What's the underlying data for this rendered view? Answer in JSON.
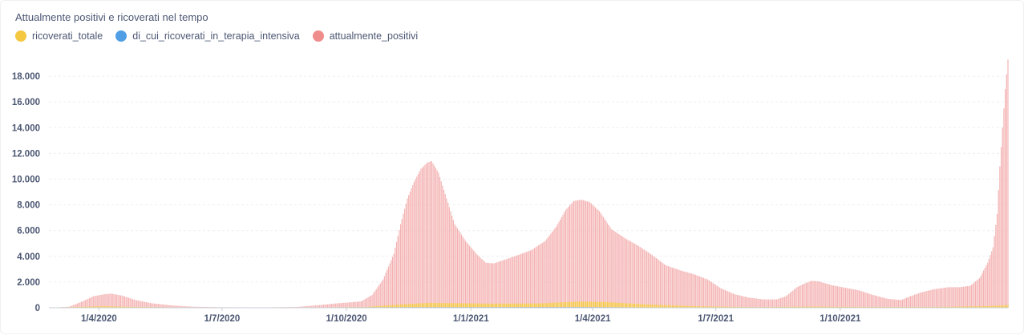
{
  "title": "Attualmente positivi e ricoverati nel tempo",
  "legend": [
    {
      "label": "ricoverati_totale",
      "color": "#f5c842"
    },
    {
      "label": "di_cui_ricoverati_in_terapia_intensiva",
      "color": "#509ee3"
    },
    {
      "label": "attualmente_positivi",
      "color": "#ef8c8c"
    }
  ],
  "chart_data": {
    "type": "bar",
    "x_axis_type": "date",
    "x_range": [
      "2020-02-24",
      "2022-01-03"
    ],
    "x_tick_labels": [
      {
        "date": "2020-04-01",
        "label": "1/4/2020"
      },
      {
        "date": "2020-07-01",
        "label": "1/7/2020"
      },
      {
        "date": "2020-10-01",
        "label": "1/10/2020"
      },
      {
        "date": "2021-01-01",
        "label": "1/1/2021"
      },
      {
        "date": "2021-04-01",
        "label": "1/4/2021"
      },
      {
        "date": "2021-07-01",
        "label": "1/7/2021"
      },
      {
        "date": "2021-10-01",
        "label": "1/10/2021"
      }
    ],
    "y_ticks": [
      {
        "value": 0,
        "label": "0"
      },
      {
        "value": 2000,
        "label": "2.000"
      },
      {
        "value": 4000,
        "label": "4.000"
      },
      {
        "value": 6000,
        "label": "6.000"
      },
      {
        "value": 8000,
        "label": "8.000"
      },
      {
        "value": 10000,
        "label": "10.000"
      },
      {
        "value": 12000,
        "label": "12.000"
      },
      {
        "value": 14000,
        "label": "14.000"
      },
      {
        "value": 16000,
        "label": "16.000"
      },
      {
        "value": 18000,
        "label": "18.000"
      }
    ],
    "ylim": [
      0,
      19500
    ],
    "grid": true,
    "legend_position": "top-left",
    "series": [
      {
        "name": "attualmente_positivi",
        "color": "#f4b1b1",
        "points": [
          [
            "2020-02-24",
            0
          ],
          [
            "2020-03-10",
            80
          ],
          [
            "2020-03-20",
            500
          ],
          [
            "2020-03-28",
            900
          ],
          [
            "2020-04-05",
            1050
          ],
          [
            "2020-04-10",
            1100
          ],
          [
            "2020-04-18",
            950
          ],
          [
            "2020-04-28",
            600
          ],
          [
            "2020-05-10",
            350
          ],
          [
            "2020-05-25",
            180
          ],
          [
            "2020-06-10",
            80
          ],
          [
            "2020-07-01",
            40
          ],
          [
            "2020-08-01",
            30
          ],
          [
            "2020-08-25",
            60
          ],
          [
            "2020-09-10",
            200
          ],
          [
            "2020-09-25",
            350
          ],
          [
            "2020-10-05",
            430
          ],
          [
            "2020-10-12",
            500
          ],
          [
            "2020-10-20",
            1000
          ],
          [
            "2020-10-28",
            2200
          ],
          [
            "2020-11-05",
            4200
          ],
          [
            "2020-11-10",
            6500
          ],
          [
            "2020-11-15",
            8500
          ],
          [
            "2020-11-20",
            9800
          ],
          [
            "2020-11-25",
            10800
          ],
          [
            "2020-11-30",
            11300
          ],
          [
            "2020-12-03",
            11400
          ],
          [
            "2020-12-08",
            10500
          ],
          [
            "2020-12-14",
            8500
          ],
          [
            "2020-12-20",
            6500
          ],
          [
            "2020-12-28",
            5200
          ],
          [
            "2021-01-05",
            4200
          ],
          [
            "2021-01-12",
            3500
          ],
          [
            "2021-01-18",
            3450
          ],
          [
            "2021-01-25",
            3700
          ],
          [
            "2021-02-05",
            4100
          ],
          [
            "2021-02-15",
            4500
          ],
          [
            "2021-02-25",
            5200
          ],
          [
            "2021-03-05",
            6300
          ],
          [
            "2021-03-12",
            7600
          ],
          [
            "2021-03-18",
            8300
          ],
          [
            "2021-03-24",
            8400
          ],
          [
            "2021-03-30",
            8200
          ],
          [
            "2021-04-06",
            7500
          ],
          [
            "2021-04-15",
            6100
          ],
          [
            "2021-04-25",
            5400
          ],
          [
            "2021-05-05",
            4800
          ],
          [
            "2021-05-15",
            4100
          ],
          [
            "2021-05-25",
            3300
          ],
          [
            "2021-06-05",
            2900
          ],
          [
            "2021-06-15",
            2600
          ],
          [
            "2021-06-25",
            2200
          ],
          [
            "2021-07-05",
            1500
          ],
          [
            "2021-07-15",
            1050
          ],
          [
            "2021-07-25",
            800
          ],
          [
            "2021-08-05",
            650
          ],
          [
            "2021-08-15",
            650
          ],
          [
            "2021-08-22",
            900
          ],
          [
            "2021-08-30",
            1600
          ],
          [
            "2021-09-05",
            1900
          ],
          [
            "2021-09-10",
            2100
          ],
          [
            "2021-09-15",
            2050
          ],
          [
            "2021-09-25",
            1750
          ],
          [
            "2021-10-05",
            1550
          ],
          [
            "2021-10-15",
            1350
          ],
          [
            "2021-10-25",
            1000
          ],
          [
            "2021-11-05",
            700
          ],
          [
            "2021-11-15",
            600
          ],
          [
            "2021-11-22",
            900
          ],
          [
            "2021-11-30",
            1200
          ],
          [
            "2021-12-10",
            1450
          ],
          [
            "2021-12-20",
            1600
          ],
          [
            "2021-12-28",
            1600
          ],
          [
            "2022-01-05",
            1700
          ],
          [
            "2022-01-12",
            2300
          ],
          [
            "2022-01-18",
            3500
          ],
          [
            "2022-01-22",
            4700
          ],
          [
            "2022-01-25",
            7300
          ],
          [
            "2022-01-27",
            11000
          ],
          [
            "2022-01-29",
            14000
          ],
          [
            "2022-01-31",
            17000
          ],
          [
            "2022-02-02",
            19300
          ]
        ]
      },
      {
        "name": "ricoverati_totale",
        "color": "#f5c842",
        "points": [
          [
            "2020-02-24",
            0
          ],
          [
            "2020-03-15",
            60
          ],
          [
            "2020-04-05",
            120
          ],
          [
            "2020-04-25",
            70
          ],
          [
            "2020-06-01",
            20
          ],
          [
            "2020-09-01",
            10
          ],
          [
            "2020-10-15",
            60
          ],
          [
            "2020-11-10",
            250
          ],
          [
            "2020-12-01",
            380
          ],
          [
            "2021-01-15",
            320
          ],
          [
            "2021-02-20",
            330
          ],
          [
            "2021-03-20",
            480
          ],
          [
            "2021-04-10",
            450
          ],
          [
            "2021-05-10",
            260
          ],
          [
            "2021-06-15",
            120
          ],
          [
            "2021-08-01",
            50
          ],
          [
            "2021-09-10",
            90
          ],
          [
            "2021-10-20",
            60
          ],
          [
            "2021-12-10",
            60
          ],
          [
            "2022-01-20",
            130
          ],
          [
            "2022-02-02",
            210
          ]
        ]
      },
      {
        "name": "di_cui_ricoverati_in_terapia_intensiva",
        "color": "#509ee3",
        "points": [
          [
            "2020-02-24",
            0
          ],
          [
            "2020-04-05",
            25
          ],
          [
            "2020-06-01",
            5
          ],
          [
            "2020-11-20",
            45
          ],
          [
            "2021-03-25",
            55
          ],
          [
            "2021-06-15",
            10
          ],
          [
            "2021-09-10",
            15
          ],
          [
            "2022-01-25",
            20
          ],
          [
            "2022-02-02",
            25
          ]
        ]
      }
    ]
  }
}
